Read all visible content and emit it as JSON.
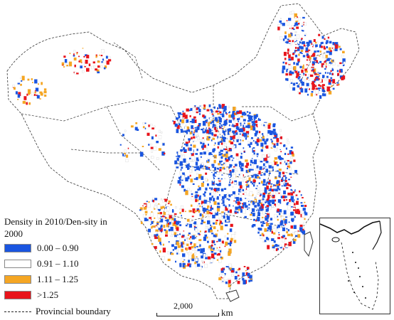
{
  "legend": {
    "title": "Density in 2010/Den-sity in 2000",
    "classes": [
      {
        "label": "0.00 – 0.90",
        "color": "#1a55e0"
      },
      {
        "label": "0.91 – 1.10",
        "color": "#ffffff"
      },
      {
        "label": "1.11 – 1.25",
        "color": "#f5a623"
      },
      {
        "label": ">1.25",
        "color": "#e8141b"
      }
    ],
    "boundary_label": "Provincial boundary"
  },
  "scale": {
    "value": "2,000",
    "unit": "km"
  },
  "colors": {
    "decrease": "#1a55e0",
    "stable": "#ffffff",
    "moderate_increase": "#f5a623",
    "high_increase": "#e8141b",
    "boundary": "#333333"
  }
}
